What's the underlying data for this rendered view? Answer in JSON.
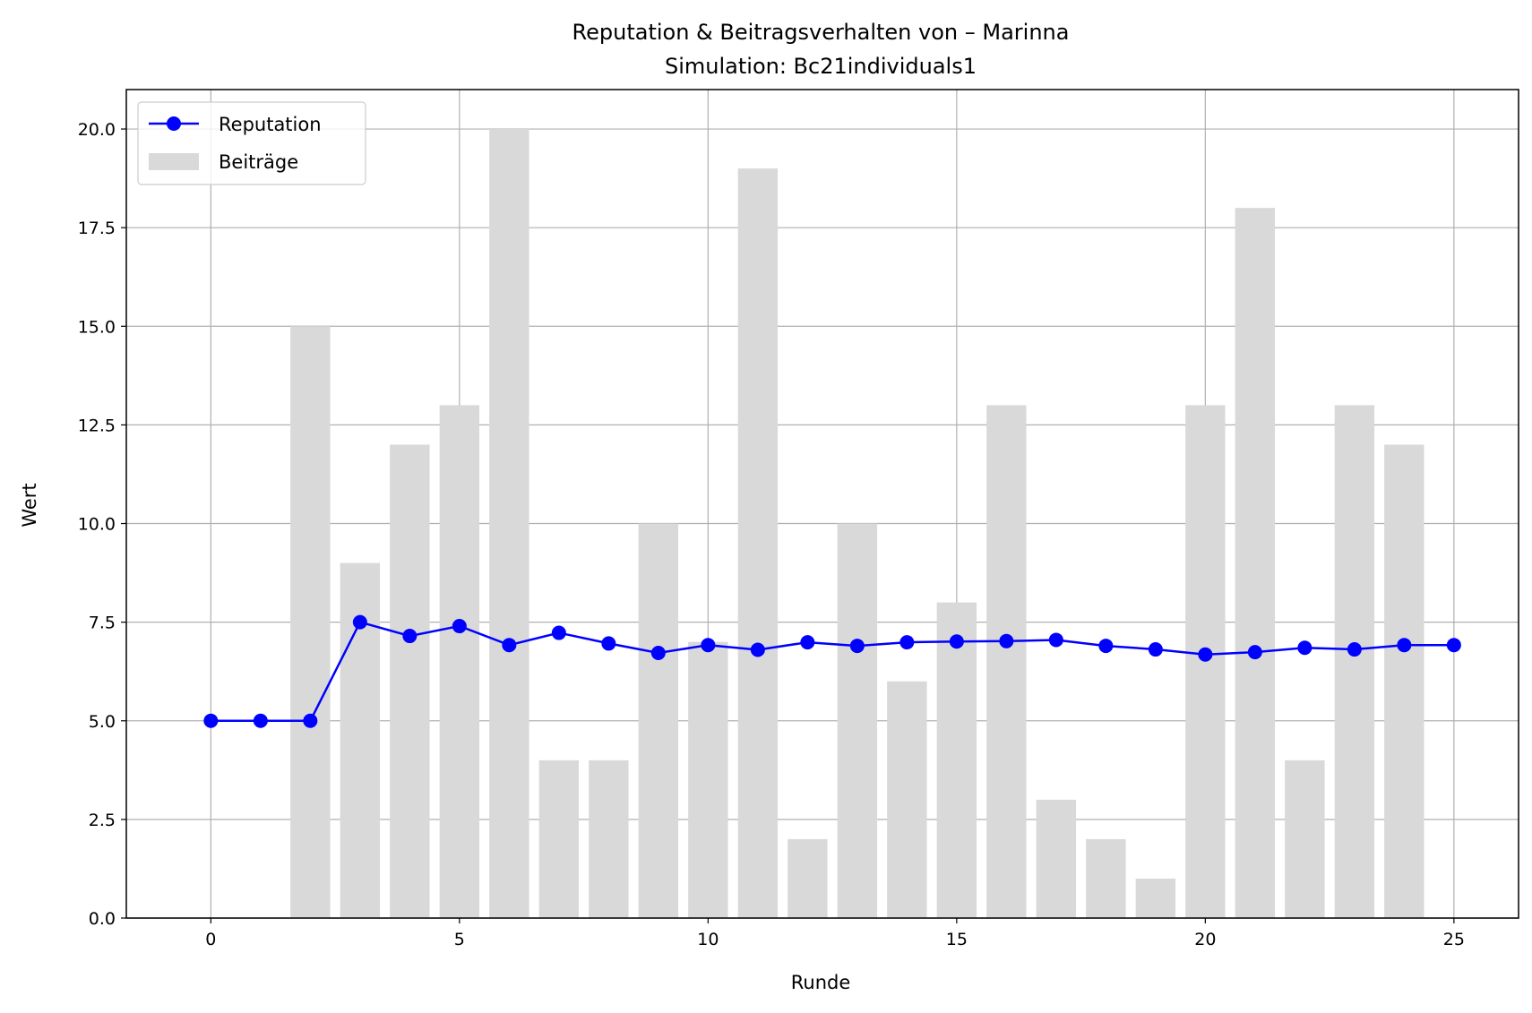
{
  "chart_data": {
    "type": "bar",
    "title": "Reputation & Beitragsverhalten von – Marinna",
    "subtitle": "Simulation: Bc21individuals1",
    "xlabel": "Runde",
    "ylabel": "Wert",
    "xlim": [
      -1.7,
      26.3
    ],
    "ylim": [
      0,
      21
    ],
    "xticks": [
      0,
      5,
      10,
      15,
      20,
      25
    ],
    "xtick_labels": [
      "0",
      "5",
      "10",
      "15",
      "20",
      "25"
    ],
    "yticks": [
      0,
      2.5,
      5,
      7.5,
      10,
      12.5,
      15,
      17.5,
      20
    ],
    "ytick_labels": [
      "0.0",
      "2.5",
      "5.0",
      "7.5",
      "10.0",
      "12.5",
      "15.0",
      "17.5",
      "20.0"
    ],
    "grid": true,
    "legend_position": "upper-left",
    "series": [
      {
        "name": "Reputation",
        "type": "line",
        "marker": "circle",
        "color": "#0000ff",
        "x": [
          0,
          1,
          2,
          3,
          4,
          5,
          6,
          7,
          8,
          9,
          10,
          11,
          12,
          13,
          14,
          15,
          16,
          17,
          18,
          19,
          20,
          21,
          22,
          23,
          24,
          25
        ],
        "values": [
          5.0,
          5.0,
          5.0,
          7.5,
          7.15,
          7.4,
          6.92,
          7.23,
          6.96,
          6.72,
          6.92,
          6.8,
          6.99,
          6.9,
          6.99,
          7.01,
          7.02,
          7.05,
          6.9,
          6.81,
          6.68,
          6.74,
          6.85,
          6.81,
          6.92,
          6.92
        ]
      },
      {
        "name": "Beiträge",
        "type": "bar",
        "color": "#d9d9d9",
        "x": [
          0,
          1,
          2,
          3,
          4,
          5,
          6,
          7,
          8,
          9,
          10,
          11,
          12,
          13,
          14,
          15,
          16,
          17,
          18,
          19,
          20,
          21,
          22,
          23,
          24,
          25
        ],
        "values": [
          0,
          0,
          15,
          9,
          12,
          13,
          20,
          4,
          4,
          10,
          7,
          19,
          2,
          10,
          6,
          8,
          13,
          3,
          2,
          1,
          13,
          18,
          4,
          13,
          12,
          0
        ]
      }
    ]
  }
}
